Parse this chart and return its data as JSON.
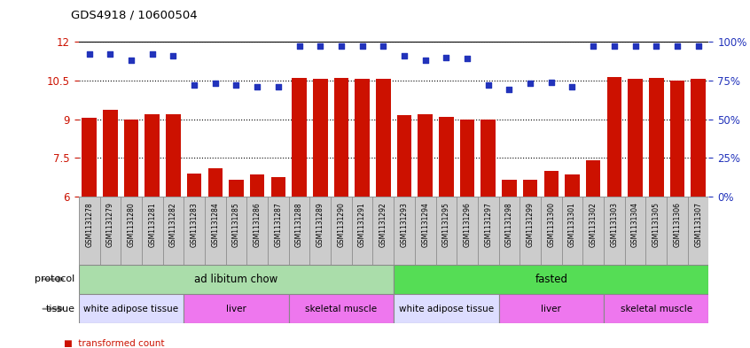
{
  "title": "GDS4918 / 10600504",
  "samples": [
    "GSM1131278",
    "GSM1131279",
    "GSM1131280",
    "GSM1131281",
    "GSM1131282",
    "GSM1131283",
    "GSM1131284",
    "GSM1131285",
    "GSM1131286",
    "GSM1131287",
    "GSM1131288",
    "GSM1131289",
    "GSM1131290",
    "GSM1131291",
    "GSM1131292",
    "GSM1131293",
    "GSM1131294",
    "GSM1131295",
    "GSM1131296",
    "GSM1131297",
    "GSM1131298",
    "GSM1131299",
    "GSM1131300",
    "GSM1131301",
    "GSM1131302",
    "GSM1131303",
    "GSM1131304",
    "GSM1131305",
    "GSM1131306",
    "GSM1131307"
  ],
  "transformed_count": [
    9.05,
    9.35,
    9.0,
    9.2,
    9.2,
    6.9,
    7.1,
    6.65,
    6.85,
    6.75,
    10.6,
    10.58,
    10.6,
    10.55,
    10.58,
    9.15,
    9.2,
    9.1,
    9.0,
    9.0,
    6.65,
    6.65,
    7.0,
    6.85,
    7.4,
    10.62,
    10.58,
    10.6,
    10.5,
    10.58
  ],
  "percentile_rank": [
    92,
    92,
    88,
    92,
    91,
    72,
    73,
    72,
    71,
    71,
    97,
    97,
    97,
    97,
    97,
    91,
    88,
    90,
    89,
    72,
    69,
    73,
    74,
    71,
    97,
    97,
    97,
    97,
    97,
    97
  ],
  "ylim_left": [
    6,
    12
  ],
  "ylim_right": [
    0,
    100
  ],
  "yticks_left": [
    6,
    7.5,
    9,
    10.5,
    12
  ],
  "yticks_right": [
    0,
    25,
    50,
    75,
    100
  ],
  "bar_color": "#cc1100",
  "dot_color": "#2233bb",
  "protocol_bands": [
    {
      "label": "ad libitum chow",
      "start": 0,
      "end": 15,
      "color": "#aaddaa"
    },
    {
      "label": "fasted",
      "start": 15,
      "end": 30,
      "color": "#55dd55"
    }
  ],
  "tissue_bands": [
    {
      "label": "white adipose tissue",
      "start": 0,
      "end": 5,
      "color": "#ddddff"
    },
    {
      "label": "liver",
      "start": 5,
      "end": 10,
      "color": "#ee77ee"
    },
    {
      "label": "skeletal muscle",
      "start": 10,
      "end": 15,
      "color": "#ee77ee"
    },
    {
      "label": "white adipose tissue",
      "start": 15,
      "end": 20,
      "color": "#ddddff"
    },
    {
      "label": "liver",
      "start": 20,
      "end": 25,
      "color": "#ee77ee"
    },
    {
      "label": "skeletal muscle",
      "start": 25,
      "end": 30,
      "color": "#ee77ee"
    }
  ],
  "grid_color": "#555555",
  "background_color": "#ffffff",
  "xticklabel_bg": "#cccccc"
}
